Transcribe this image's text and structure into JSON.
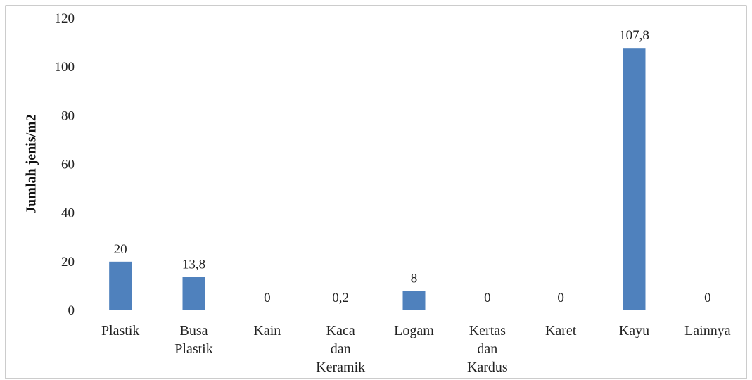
{
  "chart_data": {
    "type": "bar",
    "title": "",
    "xlabel": "",
    "ylabel": "Jumlah jenis/m2",
    "ylim": [
      0,
      120
    ],
    "yticks": [
      0,
      20,
      40,
      60,
      80,
      100,
      120
    ],
    "ytick_labels": [
      "0",
      "20",
      "40",
      "60",
      "80",
      "100",
      "120"
    ],
    "grid": false,
    "legend": "none",
    "bar_color": "#4f81bd",
    "categories": [
      [
        "Plastik"
      ],
      [
        "Busa",
        "Plastik"
      ],
      [
        "Kain"
      ],
      [
        "Kaca",
        "dan",
        "Keramik"
      ],
      [
        "Logam"
      ],
      [
        "Kertas",
        "dan",
        "Kardus"
      ],
      [
        "Karet"
      ],
      [
        "Kayu"
      ],
      [
        "Lainnya"
      ]
    ],
    "values": [
      20,
      13.8,
      0,
      0.2,
      8,
      0,
      0,
      107.8,
      0
    ],
    "data_labels": [
      "20",
      "13,8",
      "0",
      "0,2",
      "8",
      "0",
      "0",
      "107,8",
      "0"
    ]
  }
}
